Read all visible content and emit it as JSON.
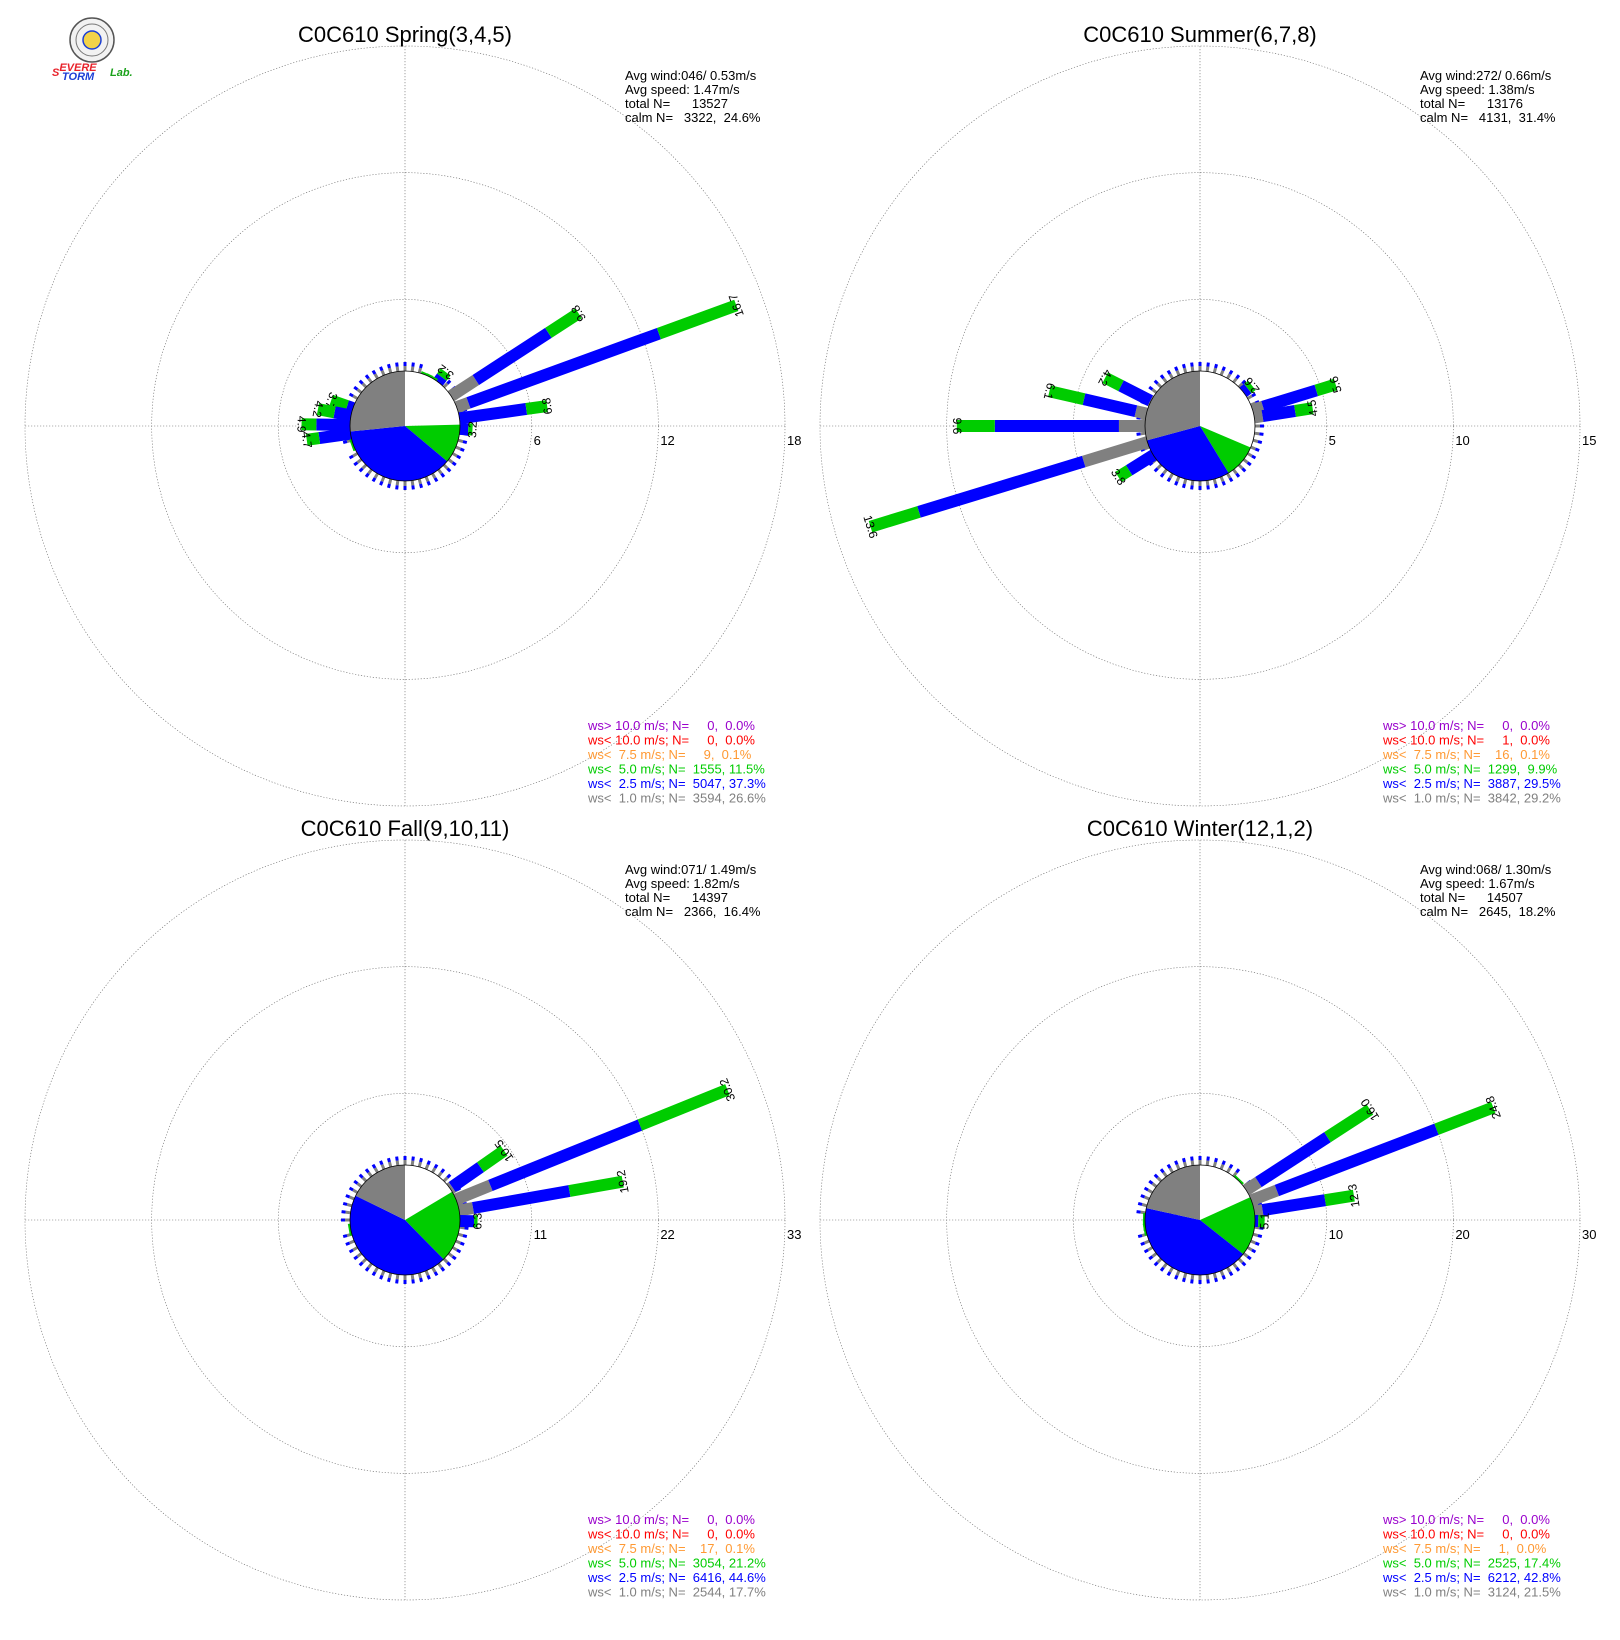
{
  "logo": {
    "text_parts": [
      "S",
      "EVERE",
      "TORM",
      "Lab."
    ],
    "colors": {
      "red": "#e8222a",
      "blue": "#1c3fd6",
      "green": "#1aa11a"
    }
  },
  "colors": {
    "ws_gt_10": "#9900cc",
    "ws_lt_10": "#ff0000",
    "ws_lt_7_5": "#ff9933",
    "ws_lt_5": "#00cc00",
    "ws_lt_2_5": "#0000ff",
    "ws_lt_1": "#808080"
  },
  "chart_data": [
    {
      "type": "polar-bar",
      "title": "C0C610 Spring(3,4,5)",
      "info": [
        "Avg wind:046/ 0.53m/s",
        "Avg speed: 1.47m/s",
        "total N=      13527",
        "calm N=   3322,  24.6%"
      ],
      "rmax": 18,
      "rings": [
        6,
        12,
        18
      ],
      "legend": [
        "ws> 10.0 m/s; N=     0,  0.0%",
        "ws< 10.0 m/s; N=     0,  0.0%",
        "ws<  7.5 m/s; N=     9,  0.1%",
        "ws<  5.0 m/s; N=  1555, 11.5%",
        "ws<  2.5 m/s; N=  5047, 37.3%",
        "ws<  1.0 m/s; N=  3594, 26.6%"
      ],
      "pie": {
        "calm": 24.6,
        "lt1": 26.6,
        "lt2_5": 37.3,
        "lt5": 11.5
      },
      "labeled_bars": [
        {
          "angle_deg": 20,
          "total": 16.7,
          "lt1": 3.2,
          "lt2_5": 12.8
        },
        {
          "angle_deg": 33,
          "total": 9.8,
          "lt1": 4.0,
          "lt2_5": 8.1
        },
        {
          "angle_deg": 8,
          "total": 6.8,
          "lt1": 2.6,
          "lt2_5": 5.8
        },
        {
          "angle_deg": 53,
          "total": 3.2,
          "lt1": 2.4,
          "lt2_5": 2.9
        },
        {
          "angle_deg": 61,
          "total": 2.3,
          "lt1": 1.8,
          "lt2_5": 2.1
        },
        {
          "angle_deg": 67,
          "total": 2.2,
          "lt1": 1.8,
          "lt2_5": 2.0
        },
        {
          "angle_deg": -3,
          "total": 3.2,
          "lt1": 2.0,
          "lt2_5": 3.0
        },
        {
          "angle_deg": 161,
          "total": 3.7,
          "lt1": 2.4,
          "lt2_5": 2.9
        },
        {
          "angle_deg": 169,
          "total": 4.2,
          "lt1": 2.4,
          "lt2_5": 3.4
        },
        {
          "angle_deg": 179,
          "total": 4.9,
          "lt1": 2.6,
          "lt2_5": 4.2
        },
        {
          "angle_deg": 188,
          "total": 4.7,
          "lt1": 2.6,
          "lt2_5": 4.1
        },
        {
          "angle_deg": 200,
          "total": 2.4,
          "lt1": 1.8,
          "lt2_5": 2.1
        }
      ],
      "bar_labels": [
        "16.7",
        "9.8",
        "6.8",
        "3.2",
        "2.3",
        "2.2",
        "3.2",
        "3.7",
        "4.2",
        "4.9",
        "4.7",
        "2.4"
      ]
    },
    {
      "type": "polar-bar",
      "title": "C0C610 Summer(6,7,8)",
      "info": [
        "Avg wind:272/ 0.66m/s",
        "Avg speed: 1.38m/s",
        "total N=      13176",
        "calm N=   4131,  31.4%"
      ],
      "rmax": 15,
      "rings": [
        5,
        10,
        15
      ],
      "legend": [
        "ws> 10.0 m/s; N=     0,  0.0%",
        "ws< 10.0 m/s; N=     1,  0.0%",
        "ws<  7.5 m/s; N=    16,  0.1%",
        "ws<  5.0 m/s; N=  1299,  9.9%",
        "ws<  2.5 m/s; N=  3887, 29.5%",
        "ws<  1.0 m/s; N=  3842, 29.2%"
      ],
      "pie": {
        "calm": 31.4,
        "lt1": 29.2,
        "lt2_5": 29.5,
        "lt5": 9.9
      },
      "labeled_bars": [
        {
          "angle_deg": 197,
          "total": 13.6,
          "lt1": 4.8,
          "lt2_5": 11.6
        },
        {
          "angle_deg": 180,
          "total": 9.6,
          "lt1": 3.2,
          "lt2_5": 8.1
        },
        {
          "angle_deg": 167,
          "total": 6.1,
          "lt1": 2.6,
          "lt2_5": 4.7
        },
        {
          "angle_deg": 153,
          "total": 4.2,
          "lt1": 2.2,
          "lt2_5": 3.5
        },
        {
          "angle_deg": 212,
          "total": 3.8,
          "lt1": 2.0,
          "lt2_5": 3.3
        },
        {
          "angle_deg": 17,
          "total": 5.6,
          "lt1": 2.6,
          "lt2_5": 4.8
        },
        {
          "angle_deg": 9,
          "total": 4.5,
          "lt1": 2.5,
          "lt2_5": 3.8
        },
        {
          "angle_deg": 38,
          "total": 2.6,
          "lt1": 2.0,
          "lt2_5": 2.4
        }
      ],
      "bar_labels": [
        "13.6",
        "9.6",
        "6.1",
        "4.2",
        "3.8",
        "5.6",
        "4.5",
        "2.6"
      ]
    },
    {
      "type": "polar-bar",
      "title": "C0C610 Fall(9,10,11)",
      "info": [
        "Avg wind:071/ 1.49m/s",
        "Avg speed: 1.82m/s",
        "total N=      14397",
        "calm N=   2366,  16.4%"
      ],
      "rmax": 33,
      "rings": [
        11,
        22,
        33
      ],
      "legend": [
        "ws> 10.0 m/s; N=     0,  0.0%",
        "ws< 10.0 m/s; N=     0,  0.0%",
        "ws<  7.5 m/s; N=    17,  0.1%",
        "ws<  5.0 m/s; N=  3054, 21.2%",
        "ws<  2.5 m/s; N=  6416, 44.6%",
        "ws<  1.0 m/s; N=  2544, 17.7%"
      ],
      "pie": {
        "calm": 16.4,
        "lt1": 17.7,
        "lt2_5": 44.6,
        "lt5": 21.2
      },
      "labeled_bars": [
        {
          "angle_deg": 22,
          "total": 30.2,
          "lt1": 8.0,
          "lt2_5": 22.0
        },
        {
          "angle_deg": 10,
          "total": 19.2,
          "lt1": 6.0,
          "lt2_5": 14.5
        },
        {
          "angle_deg": 35,
          "total": 10.5,
          "lt1": 5.0,
          "lt2_5": 8.0
        },
        {
          "angle_deg": -1,
          "total": 6.3,
          "lt1": 4.5,
          "lt2_5": 6.0
        },
        {
          "angle_deg": 190,
          "total": 2.2,
          "lt1": 1.6,
          "lt2_5": 2.0
        }
      ],
      "bar_labels": [
        "30.2",
        "19.2",
        "10.5",
        "6.3",
        "2.2"
      ]
    },
    {
      "type": "polar-bar",
      "title": "C0C610 Winter(12,1,2)",
      "info": [
        "Avg wind:068/ 1.30m/s",
        "Avg speed: 1.67m/s",
        "total N=      14507",
        "calm N=   2645,  18.2%"
      ],
      "rmax": 30,
      "rings": [
        10,
        20,
        30
      ],
      "legend": [
        "ws> 10.0 m/s; N=     0,  0.0%",
        "ws< 10.0 m/s; N=     0,  0.0%",
        "ws<  7.5 m/s; N=     1,  0.0%",
        "ws<  5.0 m/s; N=  2525, 17.4%",
        "ws<  2.5 m/s; N=  6212, 42.8%",
        "ws<  1.0 m/s; N=  3124, 21.5%"
      ],
      "pie": {
        "calm": 18.2,
        "lt1": 21.5,
        "lt2_5": 42.8,
        "lt5": 17.4
      },
      "labeled_bars": [
        {
          "angle_deg": 21,
          "total": 24.8,
          "lt1": 6.5,
          "lt2_5": 20.0
        },
        {
          "angle_deg": 33,
          "total": 16.0,
          "lt1": 5.5,
          "lt2_5": 12.0
        },
        {
          "angle_deg": 9,
          "total": 12.3,
          "lt1": 5.0,
          "lt2_5": 10.0
        },
        {
          "angle_deg": -1,
          "total": 5.1,
          "lt1": 4.0,
          "lt2_5": 4.6
        },
        {
          "angle_deg": 46,
          "total": 2.4,
          "lt1": 1.9,
          "lt2_5": 2.2
        },
        {
          "angle_deg": 179,
          "total": 2.2,
          "lt1": 1.8,
          "lt2_5": 2.0
        },
        {
          "angle_deg": 185,
          "total": 2.2,
          "lt1": 1.8,
          "lt2_5": 2.0
        },
        {
          "angle_deg": 190,
          "total": 2.2,
          "lt1": 1.8,
          "lt2_5": 2.0
        }
      ],
      "bar_labels": [
        "24.8",
        "16.0",
        "12.3",
        "5.1",
        "2.4",
        "2.2",
        "2.2",
        "2.2"
      ]
    }
  ]
}
